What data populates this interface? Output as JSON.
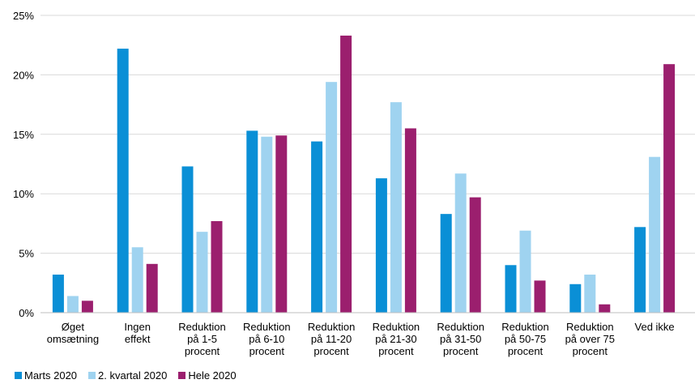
{
  "chart_data": {
    "type": "bar",
    "categories": [
      [
        "Øget",
        "omsætning"
      ],
      [
        "Ingen",
        "effekt"
      ],
      [
        "Reduktion",
        "på 1-5",
        "procent"
      ],
      [
        "Reduktion",
        "på 6-10",
        "procent"
      ],
      [
        "Reduktion",
        "på 11-20",
        "procent"
      ],
      [
        "Reduktion",
        "på 21-30",
        "procent"
      ],
      [
        "Reduktion",
        "på 31-50",
        "procent"
      ],
      [
        "Reduktion",
        "på 50-75",
        "procent"
      ],
      [
        "Reduktion",
        "på over 75",
        "procent"
      ],
      [
        "Ved ikke"
      ]
    ],
    "series": [
      {
        "name": "Marts 2020",
        "color": "#0a8fd6",
        "values": [
          3.2,
          22.2,
          12.3,
          15.3,
          14.4,
          11.3,
          8.3,
          4.0,
          2.4,
          7.2
        ]
      },
      {
        "name": "2. kvartal 2020",
        "color": "#9fd3f0",
        "values": [
          1.4,
          5.5,
          6.8,
          14.8,
          19.4,
          17.7,
          11.7,
          6.9,
          3.2,
          13.1
        ]
      },
      {
        "name": "Hele 2020",
        "color": "#9b1f6e",
        "values": [
          1.0,
          4.1,
          7.7,
          14.9,
          23.3,
          15.5,
          9.7,
          2.7,
          0.7,
          20.9
        ]
      }
    ],
    "yticks": [
      "0%",
      "5%",
      "10%",
      "15%",
      "20%",
      "25%"
    ],
    "ylim": [
      0,
      25
    ],
    "grid": true,
    "legend_position": "bottom-left",
    "title": "",
    "xlabel": "",
    "ylabel": ""
  }
}
